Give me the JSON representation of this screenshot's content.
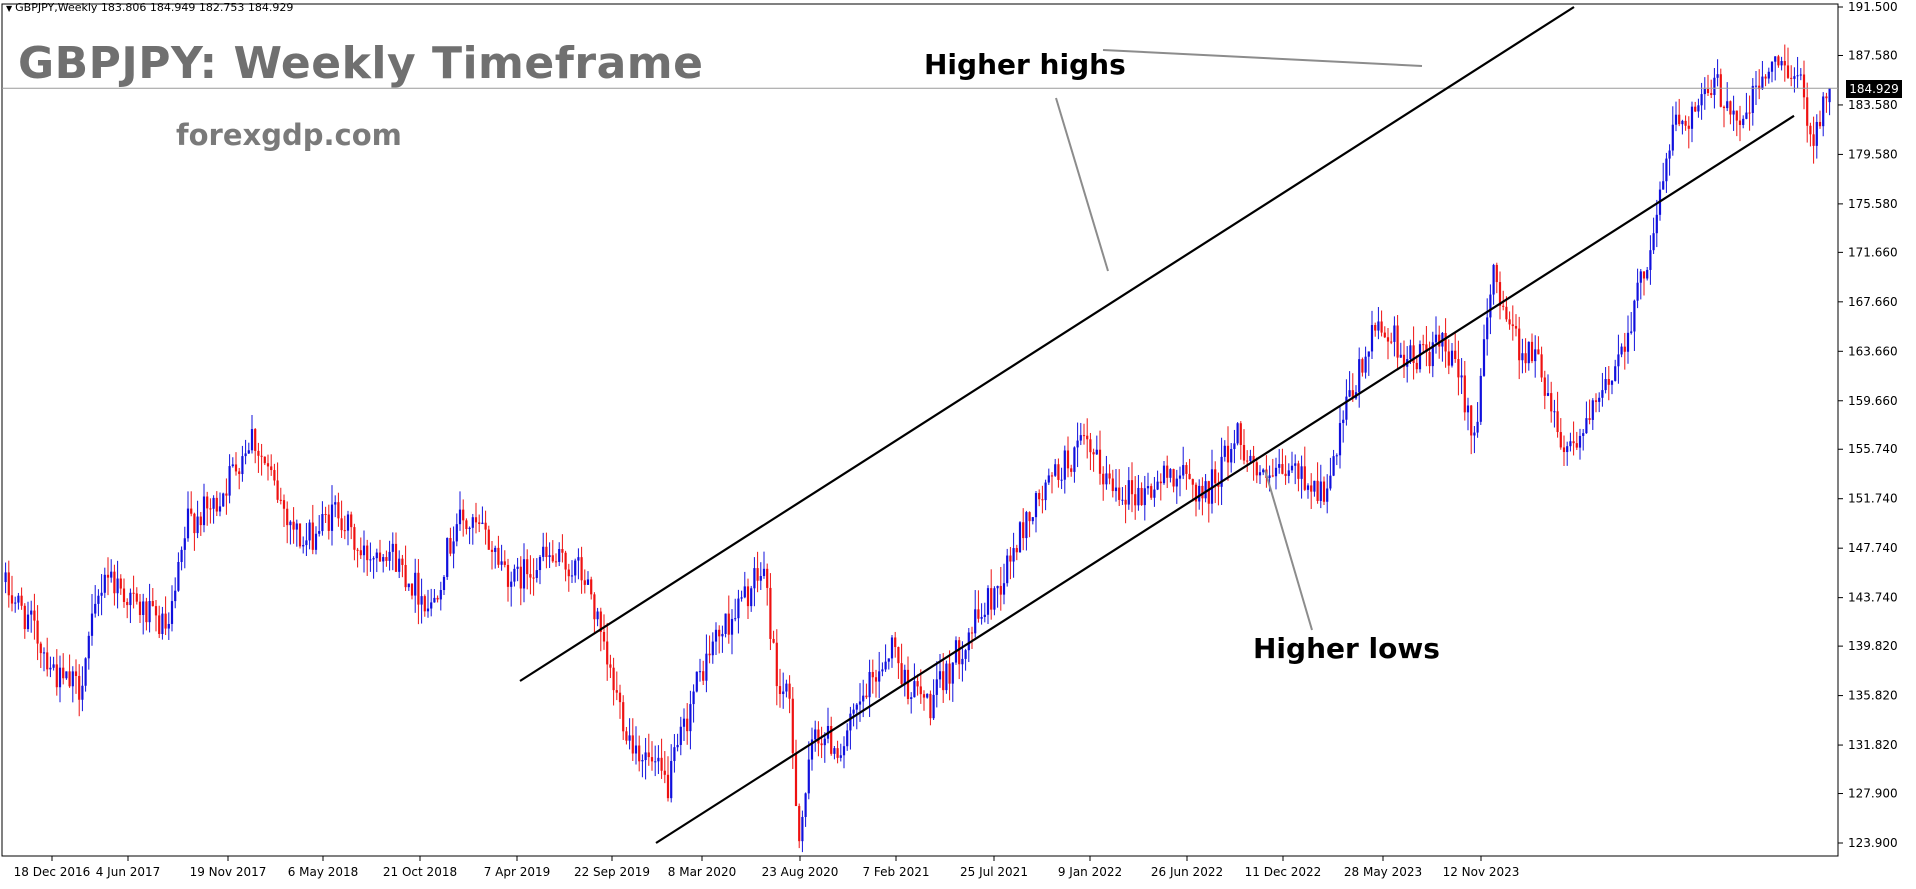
{
  "header": {
    "ticker_line": "GBPJPY,Weekly  183.806 184.949 182.753 184.929",
    "title": "GBPJPY: Weekly Timeframe",
    "watermark": "forexgdp.com"
  },
  "annotations": {
    "higher_highs": "Higher highs",
    "higher_lows": "Higher lows"
  },
  "colors": {
    "bull": "#1010dd",
    "bear": "#ee1111",
    "grid_axis": "#000000",
    "current_line": "#9a9a9a"
  },
  "chart_data": {
    "type": "candlestick",
    "title": "GBPJPY: Weekly Timeframe",
    "symbol": "GBPJPY",
    "timeframe": "Weekly",
    "last_bar": {
      "open": 183.806,
      "high": 184.949,
      "low": 182.753,
      "close": 184.929
    },
    "current_price_label": "184.929",
    "y_range": [
      122.5,
      192.5
    ],
    "y_ticks": [
      "191.500",
      "187.580",
      "183.580",
      "179.580",
      "175.580",
      "171.660",
      "167.660",
      "163.660",
      "159.660",
      "155.740",
      "151.740",
      "147.740",
      "143.740",
      "139.820",
      "135.820",
      "131.820",
      "127.900",
      "123.900"
    ],
    "x_ticks": [
      "18 Dec 2016",
      "4 Jun 2017",
      "19 Nov 2017",
      "6 May 2018",
      "21 Oct 2018",
      "7 Apr 2019",
      "22 Sep 2019",
      "8 Mar 2020",
      "23 Aug 2020",
      "7 Feb 2021",
      "25 Jul 2021",
      "9 Jan 2022",
      "26 Jun 2022",
      "11 Dec 2022",
      "28 May 2023",
      "12 Nov 2023"
    ],
    "trendlines": [
      {
        "name": "upper-channel",
        "from": [
          "7 Apr 2019",
          137.0
        ],
        "to": [
          "2024-04",
          191.5
        ]
      },
      {
        "name": "lower-channel",
        "from": [
          "8 Mar 2020",
          123.9
        ],
        "to": [
          "2024-06",
          182.7
        ]
      }
    ],
    "price_path_knots": [
      [
        0,
        145
      ],
      [
        8,
        142
      ],
      [
        18,
        137
      ],
      [
        24,
        136.5
      ],
      [
        32,
        146
      ],
      [
        42,
        143
      ],
      [
        52,
        141
      ],
      [
        58,
        150
      ],
      [
        66,
        151
      ],
      [
        78,
        157
      ],
      [
        86,
        152
      ],
      [
        94,
        148
      ],
      [
        105,
        151
      ],
      [
        112,
        147
      ],
      [
        120,
        148
      ],
      [
        128,
        145
      ],
      [
        134,
        143
      ],
      [
        142,
        150
      ],
      [
        150,
        149
      ],
      [
        160,
        145
      ],
      [
        168,
        147
      ],
      [
        180,
        146
      ],
      [
        184,
        144
      ],
      [
        188,
        139
      ],
      [
        196,
        132.5
      ],
      [
        208,
        128.5
      ],
      [
        216,
        136
      ],
      [
        222,
        140
      ],
      [
        230,
        143
      ],
      [
        238,
        146
      ],
      [
        242,
        137
      ],
      [
        246,
        135
      ],
      [
        249,
        124.5
      ],
      [
        254,
        133
      ],
      [
        262,
        131.5
      ],
      [
        270,
        136
      ],
      [
        278,
        140
      ],
      [
        282,
        137
      ],
      [
        290,
        135
      ],
      [
        300,
        140
      ],
      [
        312,
        145
      ],
      [
        320,
        150
      ],
      [
        330,
        154
      ],
      [
        338,
        156
      ],
      [
        346,
        153
      ],
      [
        356,
        152
      ],
      [
        366,
        154
      ],
      [
        376,
        152
      ],
      [
        386,
        157
      ],
      [
        394,
        153
      ],
      [
        404,
        154
      ],
      [
        414,
        152
      ],
      [
        420,
        159
      ],
      [
        430,
        166
      ],
      [
        440,
        163
      ],
      [
        450,
        164
      ],
      [
        456,
        161
      ],
      [
        460,
        157
      ],
      [
        466,
        170
      ],
      [
        474,
        164
      ],
      [
        480,
        163
      ],
      [
        488,
        156
      ],
      [
        494,
        157
      ],
      [
        500,
        160
      ],
      [
        506,
        164
      ],
      [
        512,
        169
      ],
      [
        518,
        176
      ],
      [
        522,
        182
      ],
      [
        528,
        183
      ],
      [
        536,
        185
      ],
      [
        544,
        182
      ],
      [
        550,
        186
      ],
      [
        558,
        187
      ],
      [
        562,
        185
      ],
      [
        566,
        181
      ],
      [
        570,
        184.9
      ]
    ]
  }
}
